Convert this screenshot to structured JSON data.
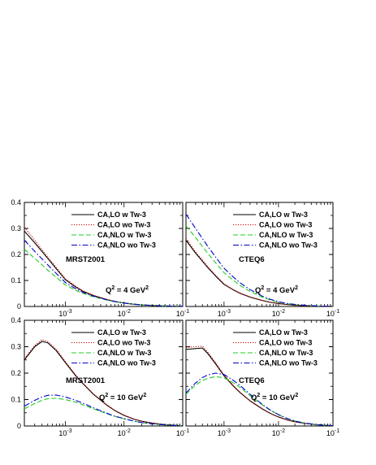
{
  "colors": {
    "tw_lo": "#000000",
    "notw_lo": "#cc0000",
    "tw_nlo": "#22cc22",
    "notw_nlo": "#0000cc"
  },
  "chart_data": [
    {
      "type": "line",
      "panel": "top-left",
      "xscale": "log",
      "xlim": [
        0.0002,
        0.1
      ],
      "ylim": [
        0,
        0.4
      ],
      "yticks": [
        "0.4",
        "0.3",
        "0.2",
        "0.1",
        "0"
      ],
      "xticks": [
        {
          "base": "10",
          "exp": "-3"
        },
        {
          "base": "10",
          "exp": "-2"
        },
        {
          "base": "10",
          "exp": "-1"
        }
      ],
      "annotations": {
        "pdf": "MRST2001",
        "q2_prefix": "Q",
        "q2_exp": "2",
        "q2_suffix": " = 4 GeV",
        "q2_unit_exp": "2"
      },
      "legend_placement": "top-right",
      "series": [
        {
          "name": "CA,LO w Tw-3",
          "style": "solid",
          "color": "#000000",
          "x": [
            0.0002,
            0.0003,
            0.0005,
            0.0007,
            0.001,
            0.0015,
            0.002,
            0.003,
            0.005,
            0.007,
            0.01,
            0.015,
            0.02,
            0.03,
            0.05,
            0.07,
            0.1
          ],
          "y": [
            0.29,
            0.245,
            0.185,
            0.145,
            0.103,
            0.075,
            0.058,
            0.042,
            0.027,
            0.019,
            0.013,
            0.008,
            0.006,
            0.004,
            0.002,
            0.001,
            0.0005
          ]
        },
        {
          "name": "CA,LO wo Tw-3",
          "style": "dotted",
          "color": "#cc0000",
          "x": [
            0.0002,
            0.0003,
            0.0005,
            0.0007,
            0.001,
            0.0015,
            0.002,
            0.003,
            0.005,
            0.007,
            0.01,
            0.015,
            0.02,
            0.03,
            0.05,
            0.07,
            0.1
          ],
          "y": [
            0.305,
            0.255,
            0.19,
            0.15,
            0.107,
            0.078,
            0.06,
            0.043,
            0.028,
            0.02,
            0.014,
            0.009,
            0.006,
            0.004,
            0.002,
            0.001,
            0.0005
          ]
        },
        {
          "name": "CA,NLO w Tw-3",
          "style": "dashed",
          "color": "#22cc22",
          "x": [
            0.0002,
            0.0003,
            0.0005,
            0.0007,
            0.001,
            0.0015,
            0.002,
            0.003,
            0.005,
            0.007,
            0.01,
            0.015,
            0.02,
            0.03,
            0.05,
            0.07,
            0.1
          ],
          "y": [
            0.22,
            0.185,
            0.14,
            0.112,
            0.083,
            0.062,
            0.05,
            0.037,
            0.025,
            0.018,
            0.013,
            0.009,
            0.006,
            0.004,
            0.002,
            0.001,
            0.0005
          ]
        },
        {
          "name": "CA,NLO wo Tw-3",
          "style": "dashdot",
          "color": "#0000cc",
          "x": [
            0.0002,
            0.0003,
            0.0005,
            0.0007,
            0.001,
            0.0015,
            0.002,
            0.003,
            0.005,
            0.007,
            0.01,
            0.015,
            0.02,
            0.03,
            0.05,
            0.07,
            0.1
          ],
          "y": [
            0.255,
            0.212,
            0.16,
            0.127,
            0.092,
            0.068,
            0.054,
            0.04,
            0.026,
            0.019,
            0.013,
            0.009,
            0.006,
            0.004,
            0.002,
            0.001,
            0.0005
          ]
        }
      ]
    },
    {
      "type": "line",
      "panel": "top-right",
      "xscale": "log",
      "xlim": [
        0.0002,
        0.1
      ],
      "ylim": [
        0,
        0.4
      ],
      "yticks": [
        "0.4",
        "0.3",
        "0.2",
        "0.1",
        "0"
      ],
      "xticks": [
        {
          "base": "10",
          "exp": "-3"
        },
        {
          "base": "10",
          "exp": "-2"
        },
        {
          "base": "10",
          "exp": "-1"
        }
      ],
      "annotations": {
        "pdf": "CTEQ6",
        "q2_prefix": "Q",
        "q2_exp": "2",
        "q2_suffix": " = 4 GeV",
        "q2_unit_exp": "2"
      },
      "legend_placement": "top-right",
      "series": [
        {
          "name": "CA,LO w Tw-3",
          "style": "solid",
          "color": "#000000",
          "x": [
            0.0002,
            0.0003,
            0.0005,
            0.0007,
            0.001,
            0.0015,
            0.002,
            0.003,
            0.005,
            0.007,
            0.01,
            0.015,
            0.02,
            0.03,
            0.05,
            0.07,
            0.1
          ],
          "y": [
            0.255,
            0.205,
            0.15,
            0.117,
            0.085,
            0.063,
            0.05,
            0.036,
            0.023,
            0.016,
            0.011,
            0.007,
            0.005,
            0.003,
            0.0015,
            0.001,
            0.0005
          ]
        },
        {
          "name": "CA,LO wo Tw-3",
          "style": "dotted",
          "color": "#cc0000",
          "x": [
            0.0002,
            0.0003,
            0.0005,
            0.0007,
            0.001,
            0.0015,
            0.002,
            0.003,
            0.005,
            0.007,
            0.01,
            0.015,
            0.02,
            0.03,
            0.05,
            0.07,
            0.1
          ],
          "y": [
            0.262,
            0.21,
            0.154,
            0.12,
            0.087,
            0.064,
            0.051,
            0.037,
            0.024,
            0.017,
            0.011,
            0.007,
            0.005,
            0.003,
            0.0015,
            0.001,
            0.0005
          ]
        },
        {
          "name": "CA,NLO w Tw-3",
          "style": "dashed",
          "color": "#22cc22",
          "x": [
            0.0002,
            0.0003,
            0.0005,
            0.0007,
            0.001,
            0.0015,
            0.002,
            0.003,
            0.005,
            0.007,
            0.01,
            0.015,
            0.02,
            0.03,
            0.05,
            0.07,
            0.1
          ],
          "y": [
            0.31,
            0.265,
            0.205,
            0.168,
            0.13,
            0.1,
            0.08,
            0.058,
            0.036,
            0.025,
            0.016,
            0.01,
            0.007,
            0.004,
            0.002,
            0.001,
            0.0005
          ]
        },
        {
          "name": "CA,NLO wo Tw-3",
          "style": "dashdot",
          "color": "#0000cc",
          "x": [
            0.0002,
            0.0003,
            0.0005,
            0.0007,
            0.001,
            0.0015,
            0.002,
            0.003,
            0.005,
            0.007,
            0.01,
            0.015,
            0.02,
            0.03,
            0.05,
            0.07,
            0.1
          ],
          "y": [
            0.355,
            0.3,
            0.232,
            0.19,
            0.147,
            0.112,
            0.09,
            0.065,
            0.04,
            0.028,
            0.018,
            0.011,
            0.008,
            0.005,
            0.002,
            0.001,
            0.0005
          ]
        }
      ]
    },
    {
      "type": "line",
      "panel": "bottom-left",
      "xscale": "log",
      "xlim": [
        0.0002,
        0.1
      ],
      "ylim": [
        0,
        0.4
      ],
      "yticks": [
        "0.4",
        "0.3",
        "0.2",
        "0.1",
        "0"
      ],
      "xticks": [
        {
          "base": "10",
          "exp": "-3"
        },
        {
          "base": "10",
          "exp": "-2"
        },
        {
          "base": "10",
          "exp": "-1"
        }
      ],
      "annotations": {
        "pdf": "MRST2001",
        "q2_prefix": "Q",
        "q2_exp": "2",
        "q2_suffix": " = 10 GeV",
        "q2_unit_exp": "2"
      },
      "legend_placement": "top-right",
      "series": [
        {
          "name": "CA,LO w Tw-3",
          "style": "solid",
          "color": "#000000",
          "x": [
            0.0002,
            0.0003,
            0.0004,
            0.0005,
            0.0007,
            0.001,
            0.0015,
            0.002,
            0.003,
            0.005,
            0.007,
            0.01,
            0.015,
            0.02,
            0.03,
            0.05,
            0.07,
            0.1
          ],
          "y": [
            0.25,
            0.3,
            0.32,
            0.315,
            0.285,
            0.24,
            0.19,
            0.16,
            0.12,
            0.08,
            0.058,
            0.04,
            0.025,
            0.018,
            0.011,
            0.005,
            0.003,
            0.001
          ]
        },
        {
          "name": "CA,LO wo Tw-3",
          "style": "dotted",
          "color": "#cc0000",
          "x": [
            0.0002,
            0.0003,
            0.0004,
            0.0005,
            0.0007,
            0.001,
            0.0015,
            0.002,
            0.003,
            0.005,
            0.007,
            0.01,
            0.015,
            0.02,
            0.03,
            0.05,
            0.07,
            0.1
          ],
          "y": [
            0.255,
            0.305,
            0.327,
            0.32,
            0.29,
            0.244,
            0.193,
            0.162,
            0.122,
            0.081,
            0.059,
            0.041,
            0.026,
            0.018,
            0.011,
            0.005,
            0.003,
            0.001
          ]
        },
        {
          "name": "CA,NLO w Tw-3",
          "style": "dashed",
          "color": "#22cc22",
          "x": [
            0.0002,
            0.0003,
            0.0004,
            0.0005,
            0.0007,
            0.001,
            0.0015,
            0.002,
            0.003,
            0.005,
            0.007,
            0.01,
            0.015,
            0.02,
            0.03,
            0.05,
            0.07,
            0.1
          ],
          "y": [
            0.065,
            0.085,
            0.097,
            0.103,
            0.105,
            0.1,
            0.09,
            0.08,
            0.065,
            0.047,
            0.036,
            0.027,
            0.018,
            0.013,
            0.008,
            0.004,
            0.002,
            0.001
          ]
        },
        {
          "name": "CA,NLO wo Tw-3",
          "style": "dashdot",
          "color": "#0000cc",
          "x": [
            0.0002,
            0.0003,
            0.0004,
            0.0005,
            0.0007,
            0.001,
            0.0015,
            0.002,
            0.003,
            0.005,
            0.007,
            0.01,
            0.015,
            0.02,
            0.03,
            0.05,
            0.07,
            0.1
          ],
          "y": [
            0.075,
            0.097,
            0.11,
            0.116,
            0.117,
            0.11,
            0.097,
            0.086,
            0.069,
            0.049,
            0.037,
            0.028,
            0.018,
            0.013,
            0.008,
            0.004,
            0.002,
            0.001
          ]
        }
      ]
    },
    {
      "type": "line",
      "panel": "bottom-right",
      "xscale": "log",
      "xlim": [
        0.0002,
        0.1
      ],
      "ylim": [
        0,
        0.4
      ],
      "yticks": [
        "0.4",
        "0.3",
        "0.2",
        "0.1",
        "0"
      ],
      "xticks": [
        {
          "base": "10",
          "exp": "-3"
        },
        {
          "base": "10",
          "exp": "-2"
        },
        {
          "base": "10",
          "exp": "-1"
        }
      ],
      "annotations": {
        "pdf": "CTEQ6",
        "q2_prefix": "Q",
        "q2_exp": "2",
        "q2_suffix": " = 10 GeV",
        "q2_unit_exp": "2"
      },
      "legend_placement": "top-right",
      "series": [
        {
          "name": "CA,LO w Tw-3",
          "style": "solid",
          "color": "#000000",
          "x": [
            0.0002,
            0.0003,
            0.0004,
            0.0005,
            0.0007,
            0.001,
            0.0015,
            0.002,
            0.003,
            0.005,
            0.007,
            0.01,
            0.015,
            0.02,
            0.03,
            0.05,
            0.07,
            0.1
          ],
          "y": [
            0.29,
            0.293,
            0.295,
            0.275,
            0.235,
            0.19,
            0.15,
            0.125,
            0.095,
            0.065,
            0.048,
            0.034,
            0.022,
            0.016,
            0.01,
            0.005,
            0.003,
            0.001
          ]
        },
        {
          "name": "CA,LO wo Tw-3",
          "style": "dotted",
          "color": "#cc0000",
          "x": [
            0.0002,
            0.0003,
            0.0004,
            0.0005,
            0.0007,
            0.001,
            0.0015,
            0.002,
            0.003,
            0.005,
            0.007,
            0.01,
            0.015,
            0.02,
            0.03,
            0.05,
            0.07,
            0.1
          ],
          "y": [
            0.297,
            0.3,
            0.302,
            0.28,
            0.24,
            0.193,
            0.152,
            0.127,
            0.096,
            0.066,
            0.048,
            0.034,
            0.022,
            0.016,
            0.01,
            0.005,
            0.003,
            0.001
          ]
        },
        {
          "name": "CA,NLO w Tw-3",
          "style": "dashed",
          "color": "#22cc22",
          "x": [
            0.0002,
            0.0003,
            0.0004,
            0.0005,
            0.0007,
            0.001,
            0.0015,
            0.002,
            0.003,
            0.005,
            0.007,
            0.01,
            0.015,
            0.02,
            0.03,
            0.05,
            0.07,
            0.1
          ],
          "y": [
            0.12,
            0.155,
            0.172,
            0.18,
            0.187,
            0.182,
            0.163,
            0.145,
            0.115,
            0.08,
            0.06,
            0.042,
            0.027,
            0.019,
            0.011,
            0.005,
            0.003,
            0.001
          ]
        },
        {
          "name": "CA,NLO wo Tw-3",
          "style": "dashdot",
          "color": "#0000cc",
          "x": [
            0.0002,
            0.0003,
            0.0004,
            0.0005,
            0.0007,
            0.001,
            0.0015,
            0.002,
            0.003,
            0.005,
            0.007,
            0.01,
            0.015,
            0.02,
            0.03,
            0.05,
            0.07,
            0.1
          ],
          "y": [
            0.125,
            0.163,
            0.183,
            0.193,
            0.2,
            0.195,
            0.172,
            0.152,
            0.12,
            0.082,
            0.061,
            0.043,
            0.027,
            0.019,
            0.011,
            0.005,
            0.003,
            0.001
          ]
        }
      ]
    }
  ]
}
